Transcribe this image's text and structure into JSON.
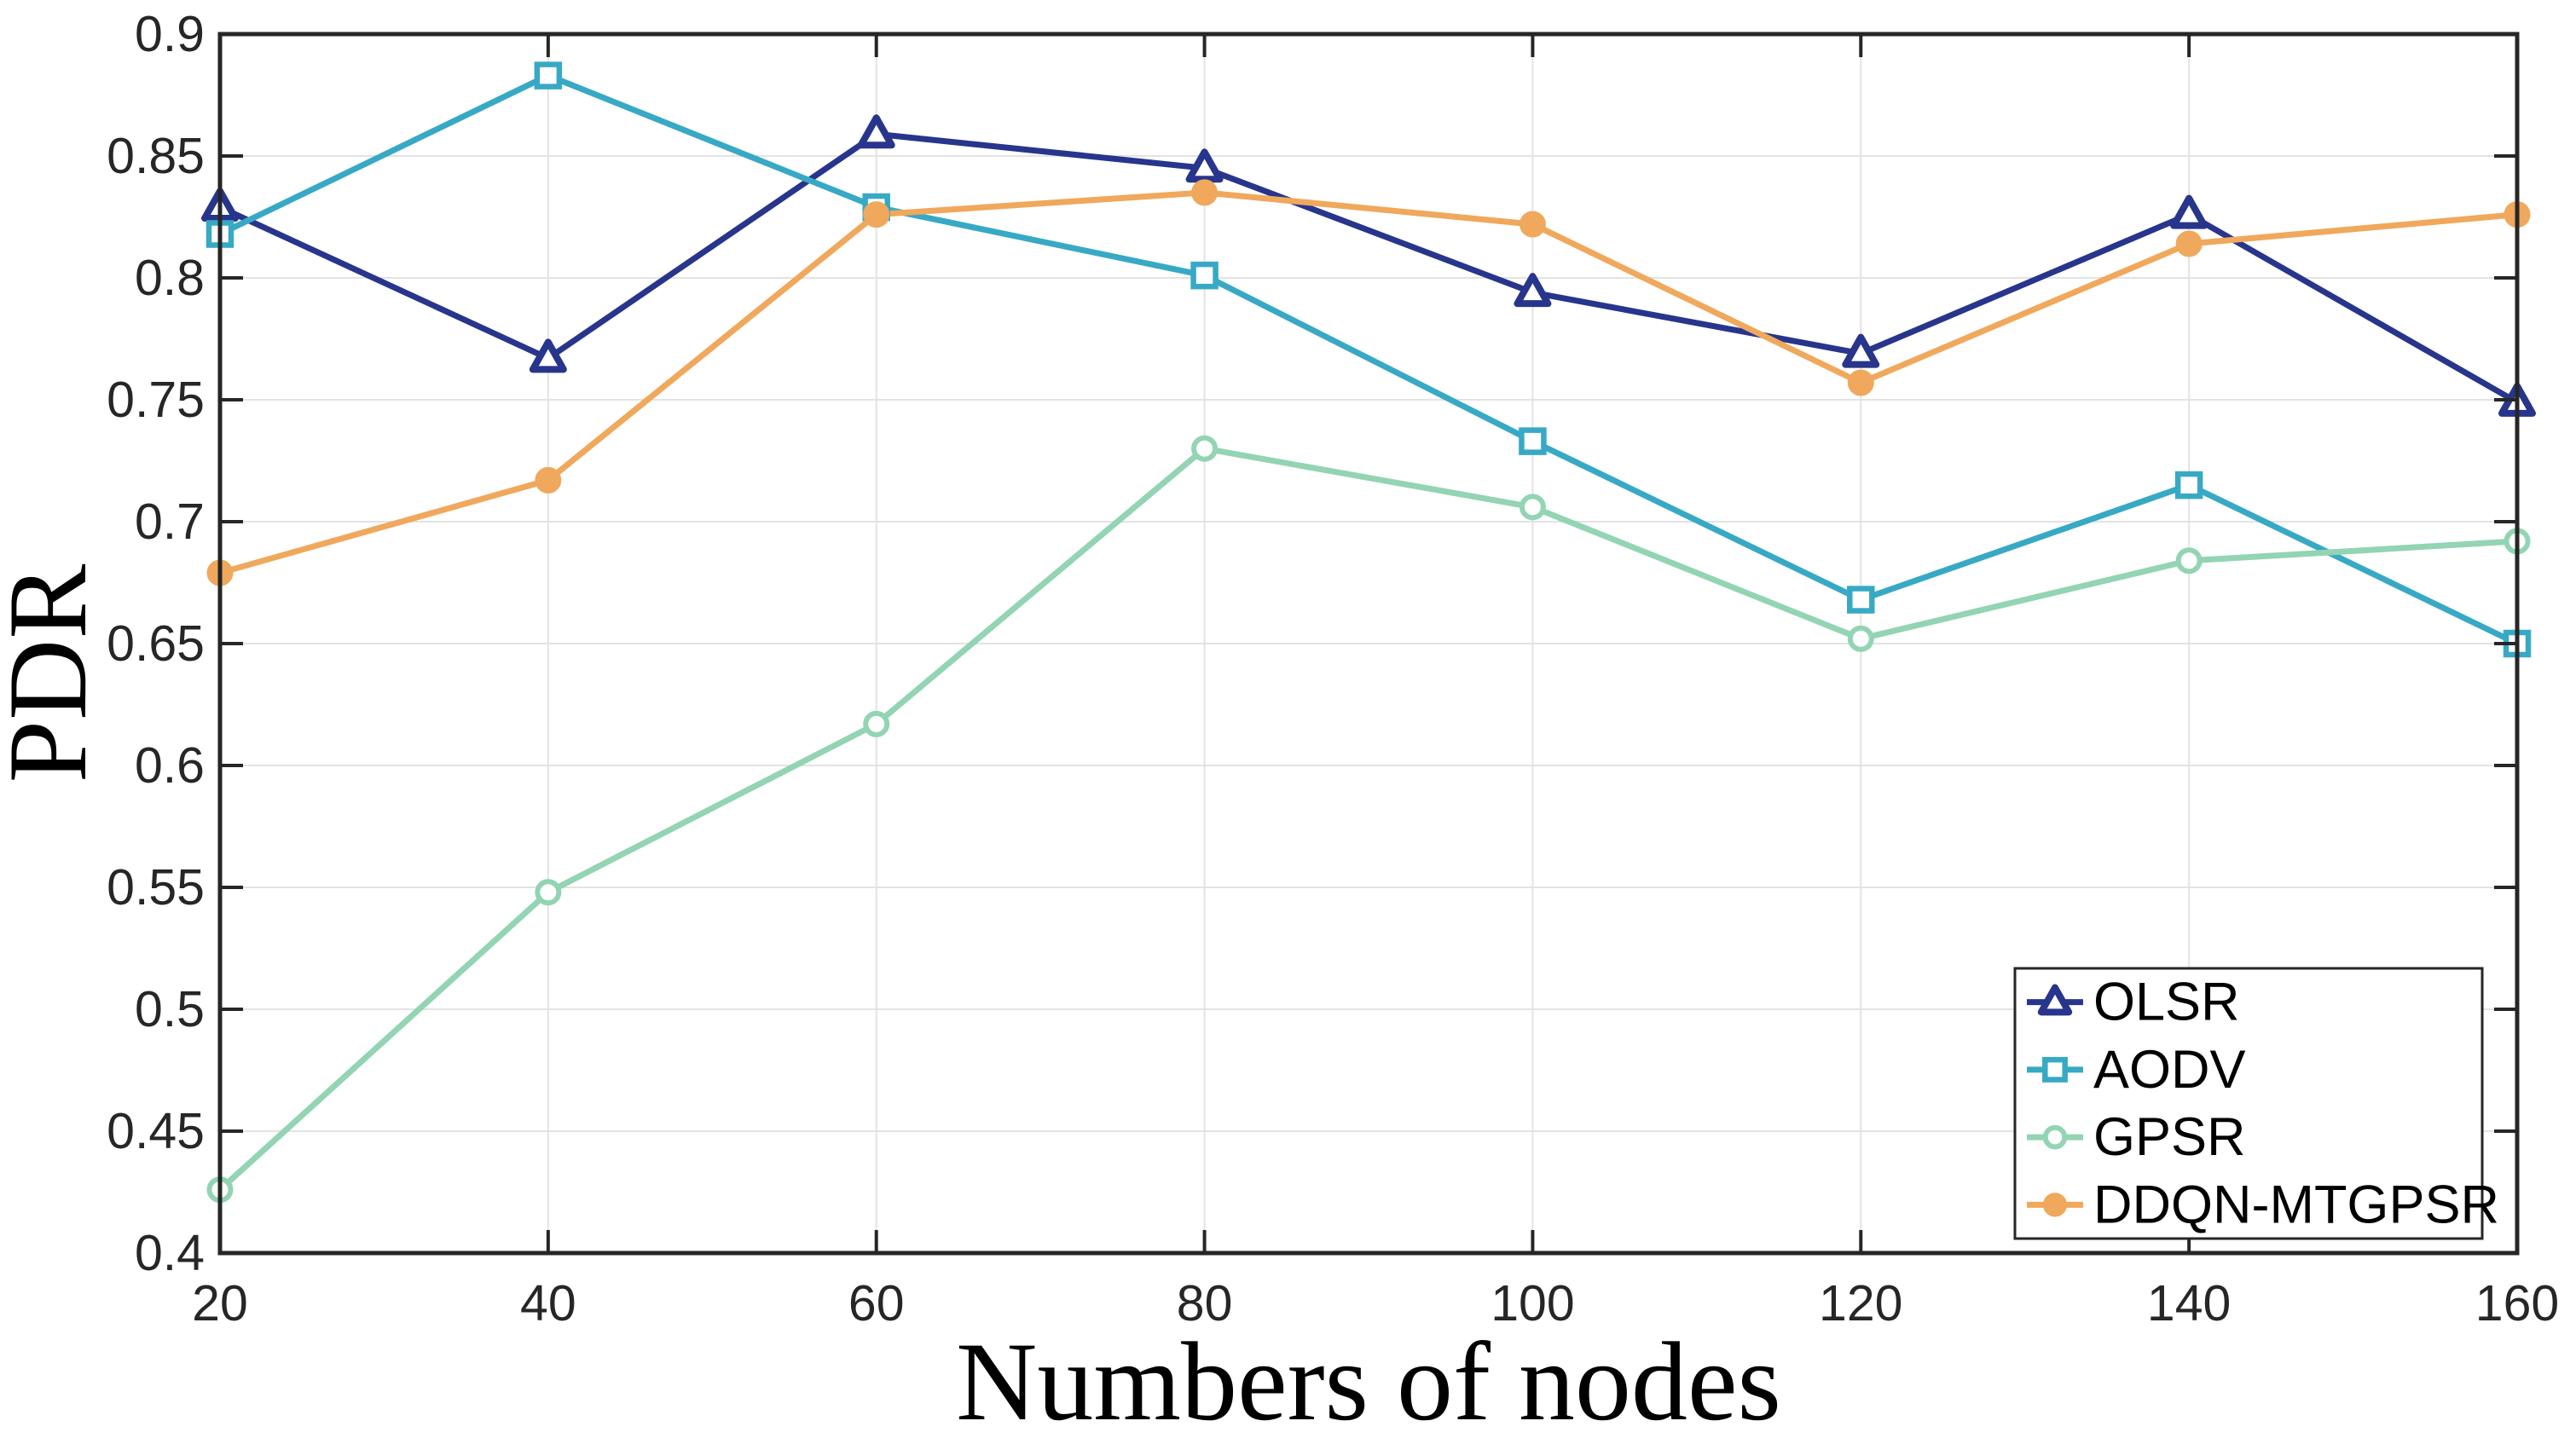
{
  "figure": {
    "background": "#ffffff",
    "axis_color": "#262626",
    "grid_color": "#e3e3e3",
    "legend_border_color": "#262626"
  },
  "chart_data": {
    "type": "line",
    "title": "",
    "xlabel": "Numbers of nodes",
    "ylabel": "PDR",
    "x": [
      20,
      40,
      60,
      80,
      100,
      120,
      140,
      160
    ],
    "xlim": [
      20,
      160
    ],
    "ylim": [
      0.4,
      0.9
    ],
    "xticks": [
      "20",
      "40",
      "60",
      "80",
      "100",
      "120",
      "140",
      "160"
    ],
    "yticks": [
      "0.4",
      "0.45",
      "0.5",
      "0.55",
      "0.6",
      "0.65",
      "0.7",
      "0.75",
      "0.8",
      "0.85",
      "0.9"
    ],
    "grid": true,
    "legend_position": "lower right",
    "series": [
      {
        "name": "OLSR",
        "color": "#28358c",
        "marker": "triangle-open",
        "values": [
          0.829,
          0.767,
          0.859,
          0.845,
          0.794,
          0.769,
          0.826,
          0.749
        ]
      },
      {
        "name": "AODV",
        "color": "#38a9c5",
        "marker": "square-open",
        "values": [
          0.818,
          0.883,
          0.829,
          0.801,
          0.733,
          0.668,
          0.715,
          0.65
        ]
      },
      {
        "name": "GPSR",
        "color": "#92d4b3",
        "marker": "circle-open",
        "values": [
          0.426,
          0.548,
          0.617,
          0.73,
          0.706,
          0.652,
          0.684,
          0.692
        ]
      },
      {
        "name": "DDQN-MTGPSR",
        "color": "#f0a85c",
        "marker": "circle-filled",
        "values": [
          0.679,
          0.717,
          0.826,
          0.835,
          0.822,
          0.757,
          0.814,
          0.826
        ]
      }
    ]
  }
}
